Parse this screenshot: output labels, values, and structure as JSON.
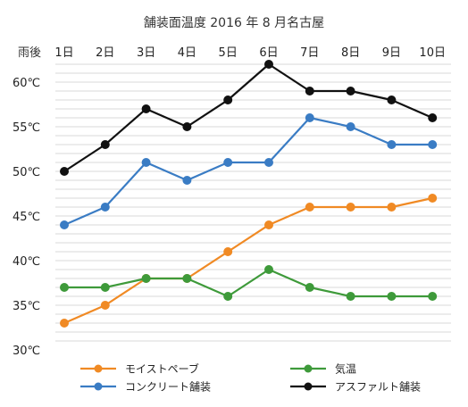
{
  "chart_data": {
    "type": "line",
    "title": "舗装面温度 2016 年 8 月名古屋",
    "category_axis_label": "雨後",
    "categories": [
      "1日",
      "2日",
      "3日",
      "4日",
      "5日",
      "6日",
      "7日",
      "8日",
      "9日",
      "10日"
    ],
    "ylim": [
      30,
      60
    ],
    "y_ticks": [
      30,
      35,
      40,
      45,
      50,
      55,
      60
    ],
    "y_tick_labels": [
      "30℃",
      "35℃",
      "40℃",
      "45℃",
      "50℃",
      "55℃",
      "60℃"
    ],
    "grid": true,
    "legend_position": "bottom",
    "series": [
      {
        "name": "モイストペーブ",
        "color": "#f08a24",
        "values": [
          33,
          35,
          38,
          38,
          41,
          44,
          46,
          46,
          46,
          47
        ]
      },
      {
        "name": "気温",
        "color": "#3e9a3a",
        "values": [
          37,
          37,
          38,
          38,
          36,
          39,
          37,
          36,
          36,
          36
        ]
      },
      {
        "name": "コンクリート舗装",
        "color": "#3a7cc4",
        "values": [
          44,
          46,
          51,
          49,
          51,
          51,
          56,
          55,
          53,
          53
        ]
      },
      {
        "name": "アスファルト舗装",
        "color": "#111111",
        "values": [
          50,
          53,
          57,
          55,
          58,
          62,
          59,
          59,
          58,
          56
        ]
      }
    ]
  }
}
